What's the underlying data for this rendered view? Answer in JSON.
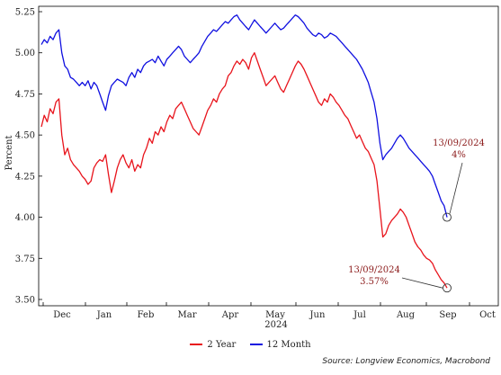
{
  "chart_data": {
    "type": "line",
    "title": "",
    "xlabel": "",
    "ylabel": "Percent",
    "year_label": "2024",
    "ylim": [
      3.5,
      5.28
    ],
    "y_ticks": [
      "5.25",
      "5.00",
      "4.75",
      "4.50",
      "4.25",
      "4.00",
      "3.75",
      "3.50"
    ],
    "x_ticks": [
      "Dec",
      "Jan",
      "Feb",
      "Mar",
      "Apr",
      "May",
      "Jun",
      "Jul",
      "Aug",
      "Sep",
      "Oct"
    ],
    "grid": false,
    "legend_position": "bottom",
    "source": "Source: Longview Economics, Macrobond",
    "colors": {
      "two_year": "#e8141c",
      "twelve_month": "#1010e0"
    },
    "series": [
      {
        "name": "2 Year",
        "color": "#e8141c",
        "values": [
          4.55,
          4.62,
          4.58,
          4.66,
          4.63,
          4.7,
          4.72,
          4.5,
          4.38,
          4.42,
          4.35,
          4.32,
          4.3,
          4.28,
          4.25,
          4.23,
          4.2,
          4.22,
          4.3,
          4.33,
          4.35,
          4.34,
          4.38,
          4.26,
          4.15,
          4.22,
          4.3,
          4.35,
          4.38,
          4.33,
          4.3,
          4.35,
          4.28,
          4.32,
          4.3,
          4.38,
          4.42,
          4.48,
          4.45,
          4.52,
          4.5,
          4.55,
          4.52,
          4.58,
          4.62,
          4.6,
          4.66,
          4.68,
          4.7,
          4.66,
          4.62,
          4.58,
          4.54,
          4.52,
          4.5,
          4.55,
          4.6,
          4.65,
          4.68,
          4.72,
          4.7,
          4.75,
          4.78,
          4.8,
          4.86,
          4.88,
          4.92,
          4.95,
          4.93,
          4.96,
          4.94,
          4.9,
          4.97,
          5.0,
          4.95,
          4.9,
          4.85,
          4.8,
          4.82,
          4.84,
          4.86,
          4.82,
          4.78,
          4.76,
          4.8,
          4.84,
          4.88,
          4.92,
          4.95,
          4.93,
          4.9,
          4.86,
          4.82,
          4.78,
          4.74,
          4.7,
          4.68,
          4.72,
          4.7,
          4.75,
          4.73,
          4.7,
          4.68,
          4.65,
          4.62,
          4.6,
          4.56,
          4.52,
          4.48,
          4.5,
          4.46,
          4.42,
          4.4,
          4.36,
          4.32,
          4.22,
          4.05,
          3.88,
          3.9,
          3.95,
          3.98,
          4.0,
          4.02,
          4.05,
          4.03,
          4.0,
          3.95,
          3.9,
          3.85,
          3.82,
          3.8,
          3.77,
          3.75,
          3.74,
          3.72,
          3.68,
          3.65,
          3.62,
          3.6,
          3.57
        ]
      },
      {
        "name": "12 Month",
        "color": "#1010e0",
        "values": [
          5.05,
          5.08,
          5.06,
          5.1,
          5.08,
          5.12,
          5.14,
          5.0,
          4.92,
          4.9,
          4.85,
          4.84,
          4.82,
          4.8,
          4.82,
          4.8,
          4.83,
          4.78,
          4.82,
          4.8,
          4.75,
          4.7,
          4.65,
          4.74,
          4.8,
          4.82,
          4.84,
          4.83,
          4.82,
          4.8,
          4.85,
          4.88,
          4.85,
          4.9,
          4.88,
          4.92,
          4.94,
          4.95,
          4.96,
          4.94,
          4.98,
          4.95,
          4.92,
          4.96,
          4.98,
          5.0,
          5.02,
          5.04,
          5.02,
          4.98,
          4.96,
          4.94,
          4.96,
          4.98,
          5.0,
          5.04,
          5.07,
          5.1,
          5.12,
          5.14,
          5.13,
          5.15,
          5.17,
          5.19,
          5.18,
          5.2,
          5.22,
          5.23,
          5.2,
          5.18,
          5.16,
          5.14,
          5.17,
          5.2,
          5.18,
          5.16,
          5.14,
          5.12,
          5.14,
          5.16,
          5.18,
          5.16,
          5.14,
          5.15,
          5.17,
          5.19,
          5.21,
          5.23,
          5.22,
          5.2,
          5.18,
          5.15,
          5.13,
          5.11,
          5.1,
          5.12,
          5.11,
          5.09,
          5.1,
          5.12,
          5.11,
          5.1,
          5.08,
          5.06,
          5.04,
          5.02,
          5.0,
          4.98,
          4.96,
          4.93,
          4.9,
          4.86,
          4.82,
          4.76,
          4.7,
          4.6,
          4.45,
          4.35,
          4.38,
          4.4,
          4.42,
          4.45,
          4.48,
          4.5,
          4.48,
          4.45,
          4.42,
          4.4,
          4.38,
          4.36,
          4.34,
          4.32,
          4.3,
          4.28,
          4.25,
          4.2,
          4.15,
          4.1,
          4.07,
          4.0
        ]
      }
    ],
    "annotations": [
      {
        "date": "13/09/2024",
        "label": "4%",
        "value": 4.0,
        "color": "#8b1a1a"
      },
      {
        "date": "13/09/2024",
        "label": "3.57%",
        "value": 3.57,
        "color": "#8b1a1a"
      }
    ]
  }
}
